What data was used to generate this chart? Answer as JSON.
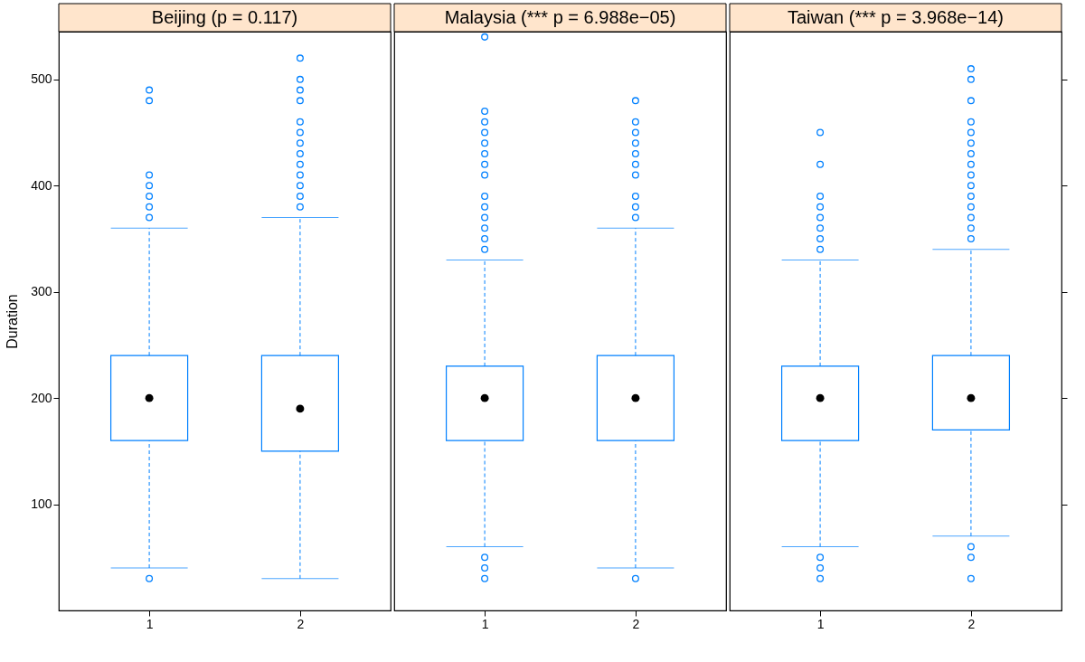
{
  "chart_data": [
    {
      "type": "box",
      "title": "Beijing (p = 0.117)",
      "ylabel": "Duration",
      "categories": [
        "1",
        "2"
      ],
      "ylim": [
        0,
        545
      ],
      "yticks": [
        100,
        200,
        300,
        400,
        500
      ],
      "grid": false,
      "marker": "circle",
      "line_style": "dashed",
      "series": [
        {
          "color": "#0080ff",
          "boxes": [
            {
              "low": 40,
              "q1": 160,
              "median": 200,
              "q3": 240,
              "high": 360,
              "outliers": [
                30,
                370,
                380,
                390,
                400,
                410,
                480,
                490
              ]
            },
            {
              "low": 30,
              "q1": 150,
              "median": 190,
              "q3": 240,
              "high": 370,
              "outliers": [
                380,
                390,
                400,
                410,
                420,
                430,
                440,
                450,
                460,
                480,
                490,
                500,
                520
              ]
            }
          ]
        }
      ]
    },
    {
      "type": "box",
      "title": "Malaysia (*** p = 6.988e−05)",
      "categories": [
        "1",
        "2"
      ],
      "ylim": [
        0,
        545
      ],
      "tick_labels": "x",
      "grid": false,
      "marker": "circle",
      "line_style": "dashed",
      "series": [
        {
          "color": "#0080ff",
          "boxes": [
            {
              "low": 60,
              "q1": 160,
              "median": 200,
              "q3": 230,
              "high": 330,
              "outliers": [
                30,
                40,
                50,
                340,
                350,
                360,
                370,
                380,
                390,
                410,
                420,
                430,
                440,
                450,
                460,
                470,
                540
              ]
            },
            {
              "low": 40,
              "q1": 160,
              "median": 200,
              "q3": 240,
              "high": 360,
              "outliers": [
                30,
                370,
                380,
                390,
                410,
                420,
                430,
                440,
                450,
                460,
                480
              ]
            }
          ]
        }
      ]
    },
    {
      "type": "box",
      "title": "Taiwan (*** p = 3.968e−14)",
      "categories": [
        "1",
        "2"
      ],
      "ylim": [
        0,
        545
      ],
      "yticks": [
        100,
        200,
        300,
        400,
        500
      ],
      "tick_labels": "x",
      "grid": false,
      "marker": "circle",
      "line_style": "dashed",
      "series": [
        {
          "color": "#0080ff",
          "boxes": [
            {
              "low": 60,
              "q1": 160,
              "median": 200,
              "q3": 230,
              "high": 330,
              "outliers": [
                30,
                40,
                50,
                340,
                350,
                360,
                370,
                380,
                390,
                420,
                450
              ]
            },
            {
              "low": 70,
              "q1": 170,
              "median": 200,
              "q3": 240,
              "high": 340,
              "outliers": [
                30,
                50,
                60,
                350,
                360,
                370,
                380,
                390,
                400,
                410,
                420,
                430,
                440,
                450,
                460,
                480,
                500,
                510
              ]
            }
          ]
        }
      ]
    }
  ]
}
